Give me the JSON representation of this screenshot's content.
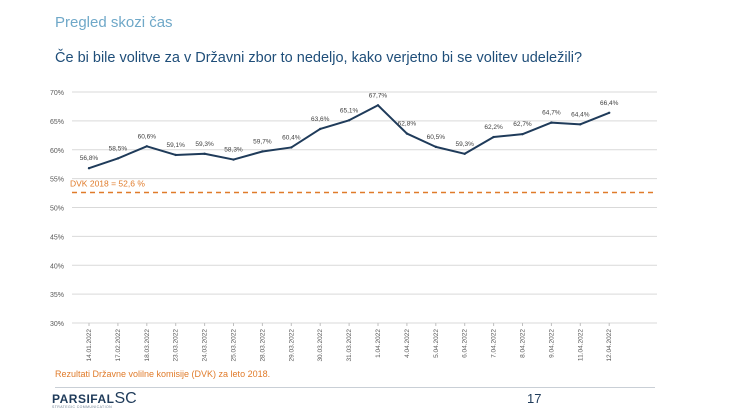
{
  "header": {
    "section_title": "Pregled skozi čas",
    "question": "Če bi bile volitve za v Državni zbor to nedeljo, kako verjetno bi se volitev udeležili?"
  },
  "chart_data": {
    "type": "line",
    "x": [
      "14.01.2022",
      "17.02.2022",
      "18.03.2022",
      "23.03.2022",
      "24.03.2022",
      "25.03.2022",
      "28.03.2022",
      "29.03.2022",
      "30.03.2022",
      "31.03.2022",
      "1.04.2022",
      "4.04.2022",
      "5.04.2022",
      "6.04.2022",
      "7.04.2022",
      "8.04.2022",
      "9.04.2022",
      "11.04.2022",
      "12.04.2022"
    ],
    "series": [
      {
        "values": [
          56.8,
          58.5,
          60.6,
          59.1,
          59.3,
          58.3,
          59.7,
          60.4,
          63.6,
          65.1,
          67.7,
          62.8,
          60.5,
          59.3,
          62.2,
          62.7,
          64.7,
          64.4,
          66.4
        ]
      }
    ],
    "data_labels": [
      "56,8%",
      "58,5%",
      "60,6%",
      "59,1%",
      "59,3%",
      "58,3%",
      "59,7%",
      "60,4%",
      "63,6%",
      "65,1%",
      "67,7%",
      "62,8%",
      "60,5%",
      "59,3%",
      "62,2%",
      "62,7%",
      "64,7%",
      "64,4%",
      "66,4%"
    ],
    "ylim": [
      30,
      70
    ],
    "y_ticks": [
      30,
      35,
      40,
      45,
      50,
      55,
      60,
      65,
      70
    ],
    "y_tick_labels": [
      "30%",
      "35%",
      "40%",
      "45%",
      "50%",
      "55%",
      "60%",
      "65%",
      "70%"
    ],
    "grid": true,
    "reference_line": {
      "value": 52.6,
      "label": "DVK 2018 = 52,6 %",
      "color": "#e07b2a"
    },
    "line_color": "#1f3b5a"
  },
  "footer": {
    "note": "Rezultati Državne volilne komisije (DVK) za leto 2018.",
    "page_number": "17",
    "logo_main": "PARSIFAL",
    "logo_suffix": "SC",
    "logo_sub": "STRATEGIC COMMUNICATION"
  }
}
